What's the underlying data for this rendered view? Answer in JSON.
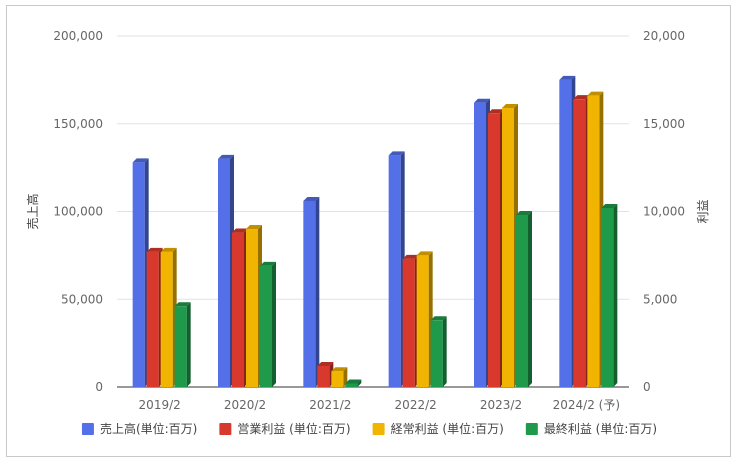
{
  "chart_data": {
    "type": "bar",
    "categories": [
      "2019/2",
      "2020/2",
      "2021/2",
      "2022/2",
      "2023/2",
      "2024/2 (予)"
    ],
    "series": [
      {
        "name": "売上高(単位:百万)",
        "axis": "left",
        "color": "#5470e8",
        "values": [
          128000,
          130000,
          106000,
          132000,
          162000,
          175000
        ]
      },
      {
        "name": "営業利益 (単位:百万)",
        "axis": "right",
        "color": "#d8392c",
        "values": [
          7700,
          8800,
          1200,
          7300,
          15600,
          16400
        ]
      },
      {
        "name": "経常利益 (単位:百万)",
        "axis": "right",
        "color": "#f1b400",
        "values": [
          7700,
          9000,
          900,
          7500,
          15900,
          16600
        ]
      },
      {
        "name": "最終利益 (単位:百万)",
        "axis": "right",
        "color": "#1f9a4b",
        "values": [
          4600,
          6900,
          200,
          3800,
          9800,
          10200
        ]
      }
    ],
    "y_left": {
      "label": "売上高",
      "ylim": [
        0,
        200000
      ],
      "ticks": [
        "0",
        "50,000",
        "100,000",
        "150,000",
        "200,000"
      ]
    },
    "y_right": {
      "label": "利益",
      "ylim": [
        0,
        20000
      ],
      "ticks": [
        "0",
        "5,000",
        "10,000",
        "15,000",
        "20,000"
      ]
    },
    "grid": true,
    "legend_position": "bottom",
    "style": "3d-bar"
  }
}
